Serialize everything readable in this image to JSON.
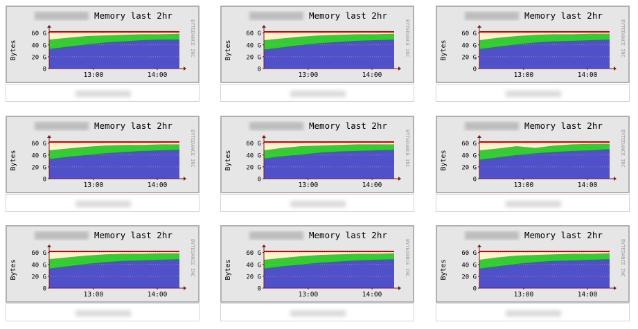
{
  "chart_data": [
    {
      "type": "area",
      "title": "Memory last 2hr",
      "ylabel": "Bytes",
      "watermark": "BYTEDANCE INC",
      "x_ticks": [
        "13:00",
        "14:00"
      ],
      "y_ticks": [
        "0",
        "20 G",
        "40 G",
        "60 G"
      ],
      "ylim": [
        0,
        60
      ],
      "series": [
        {
          "values": [
            33,
            37,
            41,
            44,
            46,
            48,
            49,
            49
          ]
        },
        {
          "values": [
            49,
            52,
            55,
            56,
            57,
            58,
            58,
            59
          ]
        }
      ],
      "mem_total": 62
    },
    {
      "type": "area",
      "title": "Memory last 2hr",
      "ylabel": "Bytes",
      "watermark": "BYTEDANCE INC",
      "x_ticks": [
        "13:00",
        "14:00"
      ],
      "y_ticks": [
        "0",
        "20 G",
        "40 G",
        "60 G"
      ],
      "ylim": [
        0,
        60
      ],
      "series": [
        {
          "values": [
            32,
            36,
            40,
            43,
            45,
            47,
            48,
            49
          ]
        },
        {
          "values": [
            48,
            51,
            54,
            56,
            57,
            58,
            58,
            59
          ]
        }
      ],
      "mem_total": 62
    },
    {
      "type": "area",
      "title": "Memory last 2hr",
      "ylabel": "Bytes",
      "watermark": "BYTEDANCE INC",
      "x_ticks": [
        "13:00",
        "14:00"
      ],
      "y_ticks": [
        "0",
        "20 G",
        "40 G",
        "60 G"
      ],
      "ylim": [
        0,
        60
      ],
      "series": [
        {
          "values": [
            33,
            37,
            41,
            44,
            46,
            47,
            48,
            49
          ]
        },
        {
          "values": [
            48,
            52,
            55,
            57,
            58,
            58,
            59,
            59
          ]
        }
      ],
      "mem_total": 62
    },
    {
      "type": "area",
      "title": "Memory last 2hr",
      "ylabel": "Bytes",
      "watermark": "BYTEDANCE INC",
      "x_ticks": [
        "13:00",
        "14:00"
      ],
      "y_ticks": [
        "0",
        "20 G",
        "40 G",
        "60 G"
      ],
      "ylim": [
        0,
        60
      ],
      "series": [
        {
          "values": [
            33,
            37,
            40,
            43,
            45,
            47,
            48,
            49
          ]
        },
        {
          "values": [
            48,
            51,
            54,
            56,
            57,
            57,
            58,
            58
          ]
        }
      ],
      "mem_total": 62
    },
    {
      "type": "area",
      "title": "Memory last 2hr",
      "ylabel": "Bytes",
      "watermark": "BYTEDANCE INC",
      "x_ticks": [
        "13:00",
        "14:00"
      ],
      "y_ticks": [
        "0",
        "20 G",
        "40 G",
        "60 G"
      ],
      "ylim": [
        0,
        60
      ],
      "series": [
        {
          "values": [
            34,
            38,
            41,
            44,
            46,
            47,
            48,
            49
          ]
        },
        {
          "values": [
            48,
            52,
            55,
            56,
            57,
            58,
            58,
            58
          ]
        }
      ],
      "mem_total": 62
    },
    {
      "type": "area",
      "title": "Memory last 2hr",
      "ylabel": "Bytes",
      "watermark": "BYTEDANCE INC",
      "x_ticks": [
        "13:00",
        "14:00"
      ],
      "y_ticks": [
        "0",
        "20 G",
        "40 G",
        "60 G"
      ],
      "ylim": [
        0,
        60
      ],
      "series": [
        {
          "values": [
            32,
            36,
            40,
            43,
            45,
            47,
            48,
            50
          ]
        },
        {
          "values": [
            48,
            51,
            55,
            52,
            56,
            58,
            59,
            59
          ]
        }
      ],
      "mem_total": 62
    },
    {
      "type": "area",
      "title": "Memory last 2hr",
      "ylabel": "Bytes",
      "watermark": "BYTEDANCE INC",
      "x_ticks": [
        "13:00",
        "14:00"
      ],
      "y_ticks": [
        "0",
        "20 G",
        "40 G",
        "60 G"
      ],
      "ylim": [
        0,
        60
      ],
      "series": [
        {
          "values": [
            33,
            37,
            41,
            44,
            46,
            47,
            48,
            49
          ]
        },
        {
          "values": [
            49,
            52,
            55,
            57,
            58,
            58,
            59,
            59
          ]
        }
      ],
      "mem_total": 62
    },
    {
      "type": "area",
      "title": "Memory last 2hr",
      "ylabel": "Bytes",
      "watermark": "BYTEDANCE INC",
      "x_ticks": [
        "13:00",
        "14:00"
      ],
      "y_ticks": [
        "0",
        "20 G",
        "40 G",
        "60 G"
      ],
      "ylim": [
        0,
        60
      ],
      "series": [
        {
          "values": [
            33,
            37,
            40,
            43,
            45,
            47,
            48,
            49
          ]
        },
        {
          "values": [
            48,
            51,
            54,
            56,
            57,
            58,
            58,
            59
          ]
        }
      ],
      "mem_total": 62
    },
    {
      "type": "area",
      "title": "Memory last 2hr",
      "ylabel": "Bytes",
      "watermark": "BYTEDANCE INC",
      "x_ticks": [
        "13:00",
        "14:00"
      ],
      "y_ticks": [
        "0",
        "20 G",
        "40 G",
        "60 G"
      ],
      "ylim": [
        0,
        60
      ],
      "series": [
        {
          "values": [
            33,
            37,
            41,
            44,
            46,
            47,
            48,
            49
          ]
        },
        {
          "values": [
            48,
            52,
            55,
            56,
            57,
            58,
            58,
            59
          ]
        }
      ],
      "mem_total": 62
    }
  ],
  "colors": {
    "used": "#5050c8",
    "cached": "#33cc33",
    "free": "#fbf3c9",
    "total": "#cc0000",
    "frame": "#e6e6e6",
    "axis": "#7a1a1a"
  }
}
